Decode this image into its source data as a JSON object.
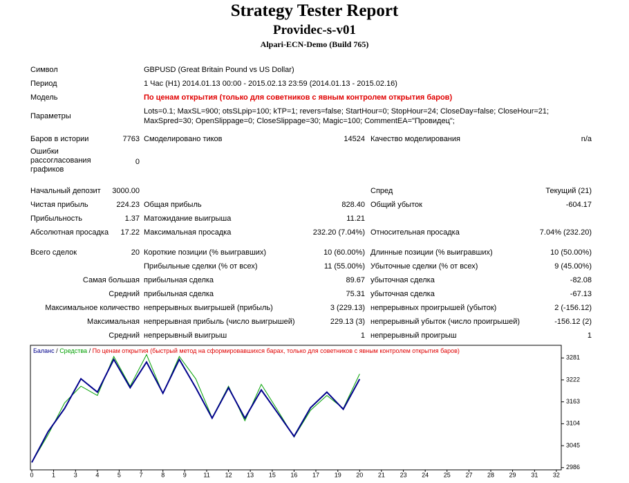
{
  "header": {
    "title": "Strategy Tester Report",
    "subtitle": "Providec-s-v01",
    "server": "Alpari-ECN-Demo (Build 765)"
  },
  "info": [
    {
      "label": "Символ",
      "value": [
        "GBPUSD (Great Britain Pound vs US Dollar)"
      ]
    },
    {
      "label": "Период",
      "value": [
        "1 Час (H1) 2014.01.13 00:00 - 2015.02.13 23:59 (2014.01.13 - 2015.02.16)"
      ]
    },
    {
      "label": "Модель",
      "value": [
        "По ценам открытия (только для советников с явным контролем открытия баров)"
      ]
    },
    {
      "label": "Параметры",
      "value": [
        "Lots=0.1; MaxSL=900; otsSLpip=100; kTP=1; revers=false; StartHour=0; StopHour=24; CloseDay=false; CloseHour=21;",
        "MaxSpred=30; OpenSlippage=0; CloseSlippage=30; Magic=100; CommentEA=\"Провидец\";"
      ]
    }
  ],
  "stats": [
    {
      "label": "Баров в истории",
      "value": "7763",
      "label2": "Смоделировано тиков",
      "value2": "14524",
      "label3": "Качество моделирования",
      "value3": "n/a"
    },
    {
      "label": "Ошибки рассогласования графиков",
      "value": "0"
    },
    {
      "label": "Начальный депозит",
      "value": "3000.00",
      "label3": "Спред",
      "value3": "Текущий (21)"
    },
    {
      "label": "Чистая прибыль",
      "value": "224.23",
      "label2": "Общая прибыль",
      "value2": "828.40",
      "label3": "Общий убыток",
      "value3": "-604.17"
    },
    {
      "label": "Прибыльность",
      "value": "1.37",
      "label2": "Матожидание выигрыша",
      "value2": "11.21"
    },
    {
      "label": "Абсолютная просадка",
      "value": "17.22",
      "label2": "Максимальная просадка",
      "value2": "232.20 (7.04%)",
      "label3": "Относительная просадка",
      "value3": "7.04% (232.20)"
    },
    {
      "label": "Всего сделок",
      "value": "20",
      "label2": "Короткие позиции (% выигравших)",
      "value2": "10 (60.00%)",
      "label3": "Длинные позиции (% выигравших)",
      "value3": "10 (50.00%)"
    },
    {
      "label2": "Прибыльные сделки (% от всех)",
      "value2": "11 (55.00%)",
      "label3": "Убыточные сделки (% от всех)",
      "value3": "9 (45.00%)"
    },
    {
      "caption": "Самая большая",
      "label2": "прибыльная сделка",
      "value2": "89.67",
      "label3": "убыточная сделка",
      "value3": "-82.08"
    },
    {
      "caption": "Средний",
      "label2": "прибыльная сделка",
      "value2": "75.31",
      "label3": "убыточная сделка",
      "value3": "-67.13"
    },
    {
      "caption": "Максимальное количество",
      "label2": "непрерывных выигрышей (прибыль)",
      "value2": "3 (229.13)",
      "label3": "непрерывных проигрышей (убыток)",
      "value3": "2 (-156.12)"
    },
    {
      "caption": "Максимальная",
      "label2": "непрерывная прибыль (число выигрышей)",
      "value2": "229.13 (3)",
      "label3": "непрерывный убыток (число проигрышей)",
      "value3": "-156.12 (2)"
    },
    {
      "caption": "Средний",
      "label2": "непрерывный выигрыш",
      "value2": "1",
      "label3": "непрерывный проигрыш",
      "value3": "1"
    }
  ],
  "chart_data": {
    "type": "line",
    "mode": "По ценам открытия (быстрый метод на сформировавшихся барах, только для советников с явным контролем открытия баров)",
    "legend_separator": "/",
    "x": [
      0,
      1,
      2,
      3,
      4,
      5,
      6,
      7,
      8,
      9,
      10,
      11,
      12,
      13,
      14,
      15,
      16,
      17,
      18,
      19,
      20
    ],
    "series": [
      {
        "name": "Баланс",
        "color": "#00008b",
        "values": [
          3000,
          3083,
          3145,
          3225,
          3189,
          3277,
          3201,
          3270,
          3186,
          3277,
          3201,
          3119,
          3201,
          3119,
          3195,
          3133,
          3070,
          3147,
          3189,
          3143,
          3224
        ]
      },
      {
        "name": "Средства",
        "color": "#00a000",
        "values": [
          3000,
          3075,
          3160,
          3205,
          3180,
          3285,
          3205,
          3290,
          3185,
          3285,
          3225,
          3120,
          3205,
          3112,
          3210,
          3140,
          3068,
          3140,
          3180,
          3145,
          3238
        ]
      }
    ],
    "mode_color": "#e00000",
    "xlim": [
      0,
      32.3
    ],
    "ylim": [
      2980,
      3315
    ],
    "xticks": [
      0,
      {
        "value": 1.33,
        "label": "1"
      },
      {
        "value": 2.67,
        "label": "3"
      },
      4,
      {
        "value": 5.33,
        "label": "5"
      },
      {
        "value": 6.67,
        "label": "7"
      },
      8,
      {
        "value": 9.33,
        "label": "9"
      },
      {
        "value": 10.67,
        "label": "11"
      },
      12,
      {
        "value": 13.33,
        "label": "13"
      },
      {
        "value": 14.67,
        "label": "15"
      },
      16,
      {
        "value": 17.33,
        "label": "17"
      },
      {
        "value": 18.67,
        "label": "19"
      },
      20,
      {
        "value": 21.33,
        "label": "21"
      },
      {
        "value": 22.67,
        "label": "23"
      },
      24,
      {
        "value": 25.33,
        "label": "25"
      },
      {
        "value": 26.67,
        "label": "27"
      },
      28,
      {
        "value": 29.33,
        "label": "29"
      },
      {
        "value": 30.67,
        "label": "31"
      },
      32
    ],
    "yticks": [
      2986,
      3045,
      3104,
      3163,
      3222,
      3281
    ]
  }
}
